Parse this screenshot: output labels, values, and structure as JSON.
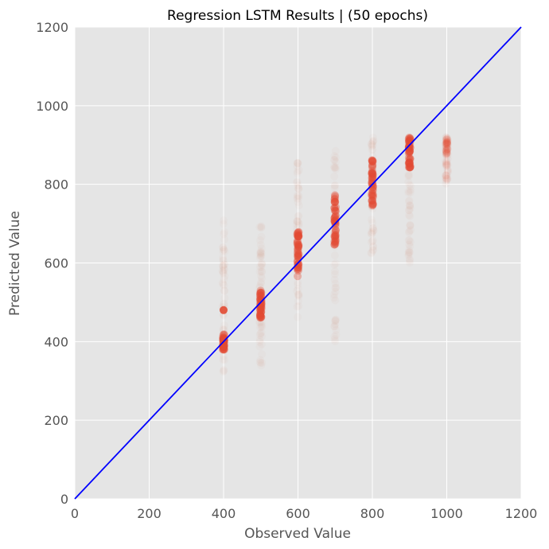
{
  "chart_data": {
    "type": "scatter",
    "title": "Regression LSTM Results | (50 epochs)",
    "xlabel": "Observed Value",
    "ylabel": "Predicted Value",
    "xlim": [
      0,
      1200
    ],
    "ylim": [
      0,
      1200
    ],
    "xticks": [
      "0",
      "200",
      "400",
      "600",
      "800",
      "1000",
      "1200"
    ],
    "yticks": [
      "0",
      "200",
      "400",
      "600",
      "800",
      "1000",
      "1200"
    ],
    "grid": true,
    "background": "#e5e5e5",
    "grid_color": "#ffffff",
    "point_color": "#e24a33",
    "reference_line": {
      "name": "y = x",
      "color": "#0000ff",
      "x": [
        0,
        1200
      ],
      "y": [
        0,
        1200
      ]
    },
    "clusters": [
      {
        "x": 400,
        "dense_range": [
          375,
          420
        ],
        "faint_range": [
          320,
          710
        ],
        "outlier_y": 480
      },
      {
        "x": 500,
        "dense_range": [
          460,
          530
        ],
        "faint_range": [
          330,
          700
        ]
      },
      {
        "x": 600,
        "dense_range": [
          565,
          680
        ],
        "faint_range": [
          460,
          870
        ]
      },
      {
        "x": 700,
        "dense_range": [
          645,
          775
        ],
        "faint_range": [
          400,
          900
        ]
      },
      {
        "x": 800,
        "dense_range": [
          745,
          870
        ],
        "faint_range": [
          620,
          920
        ]
      },
      {
        "x": 900,
        "dense_range": [
          840,
          925
        ],
        "faint_range": [
          600,
          930
        ]
      },
      {
        "x": 1000,
        "dense_range": [
          875,
          915
        ],
        "faint_range": [
          800,
          920
        ],
        "faint_only": true
      }
    ]
  }
}
